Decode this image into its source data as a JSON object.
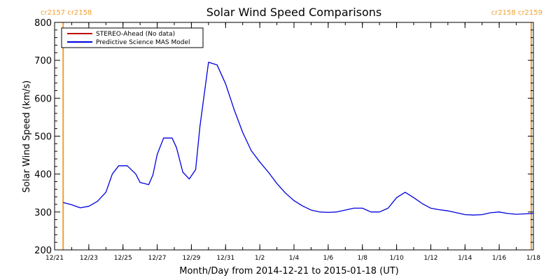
{
  "chart_data": {
    "type": "line",
    "title": "Solar Wind Speed Comparisons",
    "xlabel": "Month/Day from 2014-12-21 to 2015-01-18 (UT)",
    "ylabel": "Solar Wind Speed (km/s)",
    "ylim": [
      200,
      800
    ],
    "yticks": [
      "200",
      "300",
      "400",
      "500",
      "600",
      "700",
      "800"
    ],
    "xlim": [
      "2014-12-21",
      "2015-01-18"
    ],
    "xticks": [
      {
        "date": "2014-12-21",
        "label": "12/21"
      },
      {
        "date": "2014-12-23",
        "label": "12/23"
      },
      {
        "date": "2014-12-25",
        "label": "12/25"
      },
      {
        "date": "2014-12-27",
        "label": "12/27"
      },
      {
        "date": "2014-12-29",
        "label": "12/29"
      },
      {
        "date": "2014-12-31",
        "label": "12/31"
      },
      {
        "date": "2015-01-02",
        "label": "1/2"
      },
      {
        "date": "2015-01-04",
        "label": "1/4"
      },
      {
        "date": "2015-01-06",
        "label": "1/6"
      },
      {
        "date": "2015-01-08",
        "label": "1/8"
      },
      {
        "date": "2015-01-10",
        "label": "1/10"
      },
      {
        "date": "2015-01-12",
        "label": "1/12"
      },
      {
        "date": "2015-01-14",
        "label": "1/14"
      },
      {
        "date": "2015-01-16",
        "label": "1/16"
      },
      {
        "date": "2015-01-18",
        "label": "1/18"
      }
    ],
    "legend_position": "top-left",
    "legend": [
      {
        "label": "STEREO-Ahead (No data)",
        "color": "#c00000"
      },
      {
        "label": "Predictive Science MAS Model",
        "color": "#0000e0"
      }
    ],
    "carrington_markers": [
      {
        "date": "2014-12-21 12:00",
        "label": "cr2157 cr2158",
        "align": "left"
      },
      {
        "date": "2015-01-17 21:00",
        "label": "cr2158 cr2159",
        "align": "right"
      }
    ],
    "marker_color": "#f0a030",
    "series": [
      {
        "name": "Predictive Science MAS Model",
        "color": "#0000e0",
        "x": [
          "2014-12-21 12:00",
          "2014-12-22 00:00",
          "2014-12-22 12:00",
          "2014-12-23 00:00",
          "2014-12-23 12:00",
          "2014-12-24 00:00",
          "2014-12-24 09:00",
          "2014-12-24 18:00",
          "2014-12-25 06:00",
          "2014-12-25 18:00",
          "2014-12-26 00:00",
          "2014-12-26 12:00",
          "2014-12-26 18:00",
          "2014-12-27 00:00",
          "2014-12-27 09:00",
          "2014-12-27 21:00",
          "2014-12-28 03:00",
          "2014-12-28 12:00",
          "2014-12-28 21:00",
          "2014-12-29 06:00",
          "2014-12-29 12:00",
          "2014-12-30 00:00",
          "2014-12-30 12:00",
          "2014-12-31 00:00",
          "2014-12-31 12:00",
          "2015-01-01 00:00",
          "2015-01-01 12:00",
          "2015-01-02 00:00",
          "2015-01-02 12:00",
          "2015-01-03 00:00",
          "2015-01-03 12:00",
          "2015-01-04 00:00",
          "2015-01-04 12:00",
          "2015-01-05 00:00",
          "2015-01-05 12:00",
          "2015-01-06 00:00",
          "2015-01-06 12:00",
          "2015-01-07 00:00",
          "2015-01-07 12:00",
          "2015-01-08 00:00",
          "2015-01-08 12:00",
          "2015-01-09 00:00",
          "2015-01-09 12:00",
          "2015-01-10 00:00",
          "2015-01-10 12:00",
          "2015-01-11 00:00",
          "2015-01-11 12:00",
          "2015-01-12 00:00",
          "2015-01-12 12:00",
          "2015-01-13 00:00",
          "2015-01-13 12:00",
          "2015-01-14 00:00",
          "2015-01-14 12:00",
          "2015-01-15 00:00",
          "2015-01-15 12:00",
          "2015-01-16 00:00",
          "2015-01-16 12:00",
          "2015-01-17 00:00",
          "2015-01-17 12:00",
          "2015-01-18 00:00"
        ],
        "y": [
          325,
          319,
          311,
          315,
          328,
          352,
          400,
          422,
          422,
          400,
          378,
          372,
          398,
          452,
          495,
          495,
          470,
          405,
          387,
          412,
          525,
          695,
          688,
          638,
          570,
          510,
          462,
          432,
          405,
          375,
          350,
          330,
          316,
          305,
          300,
          299,
          300,
          305,
          310,
          310,
          300,
          300,
          310,
          338,
          352,
          338,
          322,
          310,
          306,
          303,
          298,
          293,
          292,
          293,
          298,
          300,
          296,
          294,
          295,
          296
        ]
      }
    ]
  }
}
